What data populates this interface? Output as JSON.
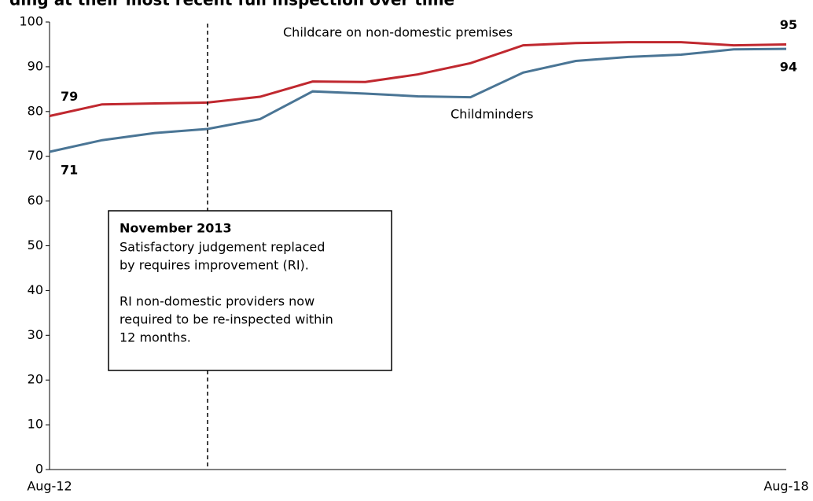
{
  "chart_data": {
    "type": "line",
    "title": "ding at their most recent full inspection over time",
    "categories": [
      "Aug-12",
      null,
      null,
      null,
      null,
      null,
      null,
      null,
      null,
      null,
      null,
      null,
      null,
      null,
      "Aug-18"
    ],
    "series": [
      {
        "name": "Childcare on non-domestic premises",
        "color": "#c0282f",
        "values": [
          79,
          81.6,
          81.8,
          82,
          83.3,
          86.7,
          86.6,
          88.3,
          90.8,
          94.8,
          95.3,
          95.5,
          95.5,
          94.8,
          95
        ]
      },
      {
        "name": "Childminders",
        "color": "#4a7595",
        "values": [
          71,
          73.6,
          75.2,
          76.1,
          78.3,
          84.5,
          84,
          83.4,
          83.2,
          88.7,
          91.3,
          92.2,
          92.7,
          93.9,
          94
        ]
      }
    ],
    "ylim": [
      0,
      100
    ],
    "yticks": [
      0,
      10,
      20,
      30,
      40,
      50,
      60,
      70,
      80,
      90,
      100
    ],
    "annotation": {
      "heading": "November 2013",
      "lines": [
        "Satisfactory judgement replaced",
        "by requires improvement (RI).",
        "",
        "RI non-domestic providers now",
        "required to be re-inspected within",
        "12 months."
      ]
    }
  }
}
